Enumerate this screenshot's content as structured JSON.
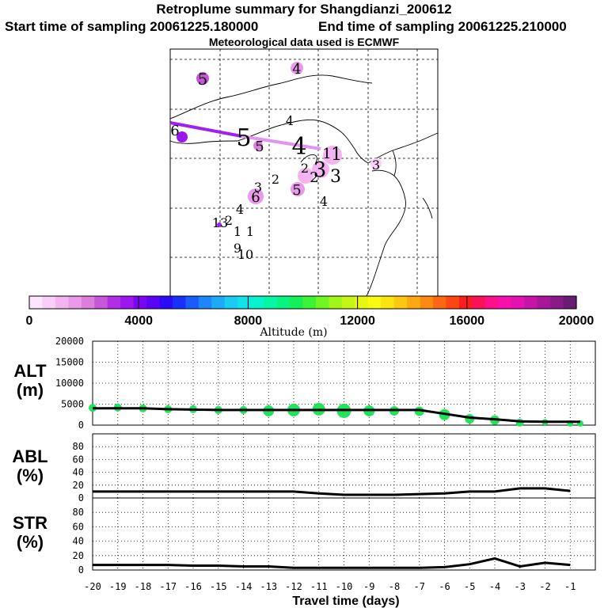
{
  "title": "Retroplume summary for Shangdianzi_200612",
  "subtitle_start": "Start time of sampling 20061225.180000",
  "subtitle_end": "End time of sampling 20061225.210000",
  "met_text": "Meteorological data used is ECMWF",
  "colors": {
    "curve": "#000000",
    "alt_markers": "#22e35a",
    "track_dark": "#a020f0",
    "track_light": "#e294f0",
    "grid": "#000000"
  },
  "colorbar": {
    "label": "Altitude (m)",
    "tick_labels": [
      "0",
      "4000",
      "8000",
      "12000",
      "16000",
      "20000"
    ],
    "tick_values": [
      0,
      4000,
      8000,
      12000,
      16000,
      20000
    ],
    "min": 0,
    "max": 20000,
    "colors": [
      "#fce6fc",
      "#f9cff9",
      "#f4b4f2",
      "#e99ae8",
      "#dc7edc",
      "#c856d8",
      "#b02ee6",
      "#9c16ef",
      "#7c06f4",
      "#5a04f6",
      "#2c0af8",
      "#1830fa",
      "#1a5cfb",
      "#1e86fb",
      "#1eaaf9",
      "#1acbf4",
      "#10e4e8",
      "#08f2cc",
      "#06f6a8",
      "#08f480",
      "#14f058",
      "#3cf434",
      "#70f622",
      "#a0f618",
      "#c8f614",
      "#e8f612",
      "#fafa10",
      "#fce410",
      "#fcc810",
      "#fcaa10",
      "#fc8a10",
      "#fc6812",
      "#fc4614",
      "#fc1c1a",
      "#fc1058",
      "#fc108c",
      "#f810ac",
      "#e412b0",
      "#c814a6",
      "#a8169a",
      "#881a8a",
      "#6a1c74"
    ]
  },
  "map_labels": [
    {
      "text": "5",
      "size": "large",
      "color": "dark"
    },
    {
      "text": "4",
      "size": "large",
      "color": "light"
    },
    {
      "text": "4",
      "size": "small",
      "color": "light"
    },
    {
      "text": "6",
      "size": "small",
      "color": "dark"
    },
    {
      "text": "5",
      "size": "xlarge",
      "color": "dark"
    },
    {
      "text": "5",
      "size": "small",
      "color": "light"
    },
    {
      "text": "4",
      "size": "xlarge",
      "color": "light"
    },
    {
      "text": "1",
      "size": "small",
      "color": "light"
    },
    {
      "text": "1",
      "size": "small",
      "color": "light"
    },
    {
      "text": "3",
      "size": "small",
      "color": "light"
    },
    {
      "text": "2",
      "size": "small",
      "color": "light"
    },
    {
      "text": "3",
      "size": "small",
      "color": "light"
    },
    {
      "text": "2",
      "size": "small",
      "color": "light"
    },
    {
      "text": "3",
      "size": "small",
      "color": "light"
    },
    {
      "text": "2",
      "size": "small",
      "color": "none"
    },
    {
      "text": "5",
      "size": "small",
      "color": "light"
    },
    {
      "text": "6",
      "size": "small",
      "color": "light"
    },
    {
      "text": "3",
      "size": "small",
      "color": "none"
    },
    {
      "text": "4",
      "size": "small",
      "color": "none"
    },
    {
      "text": "4",
      "size": "small",
      "color": "none"
    },
    {
      "text": "13",
      "size": "small",
      "color": "none"
    },
    {
      "text": "2",
      "size": "small",
      "color": "none"
    },
    {
      "text": "1",
      "size": "small",
      "color": "none"
    },
    {
      "text": "1",
      "size": "small",
      "color": "none"
    },
    {
      "text": "9",
      "size": "small",
      "color": "none"
    },
    {
      "text": "10",
      "size": "small",
      "color": "none"
    }
  ],
  "chart_data": [
    {
      "type": "line",
      "name": "ALT",
      "ylabel": "ALT\n(m)",
      "ylabel_lines": [
        "ALT",
        "(m)"
      ],
      "ylim": [
        0,
        20000
      ],
      "yticks": [
        0,
        5000,
        10000,
        15000,
        20000
      ],
      "ytick_labels": [
        "0",
        "5000",
        "10000",
        "15000",
        "20000"
      ],
      "x": [
        -20,
        -19,
        -18,
        -17,
        -16,
        -15,
        -14,
        -13,
        -12,
        -11,
        -10,
        -9,
        -8,
        -7,
        -6,
        -5,
        -4,
        -3,
        -2,
        -1,
        -0.6
      ],
      "values": [
        4000,
        4000,
        4000,
        3800,
        3700,
        3600,
        3600,
        3600,
        3600,
        3600,
        3600,
        3600,
        3600,
        3600,
        2700,
        1800,
        1400,
        900,
        800,
        800,
        800
      ],
      "markers": [
        {
          "x": -20,
          "y": 4100,
          "r": 5
        },
        {
          "x": -19,
          "y": 4200,
          "r": 5
        },
        {
          "x": -18,
          "y": 4000,
          "r": 5
        },
        {
          "x": -17,
          "y": 3800,
          "r": 5
        },
        {
          "x": -16,
          "y": 3800,
          "r": 5
        },
        {
          "x": -15,
          "y": 3600,
          "r": 5
        },
        {
          "x": -14,
          "y": 3600,
          "r": 5
        },
        {
          "x": -13,
          "y": 3400,
          "r": 7
        },
        {
          "x": -12,
          "y": 3600,
          "r": 8
        },
        {
          "x": -11,
          "y": 3800,
          "r": 8
        },
        {
          "x": -10,
          "y": 3400,
          "r": 9
        },
        {
          "x": -9,
          "y": 3400,
          "r": 7
        },
        {
          "x": -8,
          "y": 3400,
          "r": 6
        },
        {
          "x": -7,
          "y": 3300,
          "r": 6
        },
        {
          "x": -6,
          "y": 2500,
          "r": 7
        },
        {
          "x": -5,
          "y": 1500,
          "r": 6
        },
        {
          "x": -4,
          "y": 1200,
          "r": 6
        },
        {
          "x": -3,
          "y": 600,
          "r": 5
        },
        {
          "x": -2,
          "y": 700,
          "r": 4
        },
        {
          "x": -1,
          "y": 400,
          "r": 4
        },
        {
          "x": -0.6,
          "y": 400,
          "r": 4
        }
      ]
    },
    {
      "type": "line",
      "name": "ABL",
      "ylabel": "ABL\n(%)",
      "ylabel_lines": [
        "ABL",
        "(%)"
      ],
      "ylim": [
        0,
        100
      ],
      "yticks": [
        0,
        20,
        40,
        60,
        80
      ],
      "ytick_labels": [
        "0",
        "20",
        "40",
        "60",
        "80"
      ],
      "x": [
        -20,
        -19,
        -18,
        -17,
        -16,
        -15,
        -14,
        -13,
        -12,
        -11,
        -10,
        -9,
        -8,
        -7,
        -6,
        -5,
        -4,
        -3,
        -2,
        -1
      ],
      "values": [
        10,
        10,
        10,
        10,
        10,
        10,
        10,
        10,
        10,
        7,
        5,
        5,
        5,
        6,
        7,
        10,
        10,
        15,
        15,
        11
      ]
    },
    {
      "type": "line",
      "name": "STR",
      "ylabel": "STR\n(%)",
      "ylabel_lines": [
        "STR",
        "(%)"
      ],
      "ylim": [
        0,
        100
      ],
      "yticks": [
        0,
        20,
        40,
        60,
        80
      ],
      "ytick_labels": [
        "0",
        "20",
        "40",
        "60",
        "80"
      ],
      "x": [
        -20,
        -19,
        -18,
        -17,
        -16,
        -15,
        -14,
        -13,
        -12,
        -11,
        -10,
        -9,
        -8,
        -7,
        -6,
        -5,
        -4,
        -3,
        -2,
        -1
      ],
      "values": [
        7,
        7,
        7,
        7,
        6,
        6,
        5,
        5,
        3,
        3,
        3,
        3,
        3,
        3,
        4,
        8,
        16,
        5,
        10,
        7
      ],
      "xlabel": "Travel time (days)",
      "xlim": [
        -20,
        0
      ],
      "xticks": [
        -20,
        -19,
        -18,
        -17,
        -16,
        -15,
        -14,
        -13,
        -12,
        -11,
        -10,
        -9,
        -8,
        -7,
        -6,
        -5,
        -4,
        -3,
        -2,
        -1
      ],
      "xtick_labels": [
        "-20",
        "-19",
        "-18",
        "-17",
        "-16",
        "-15",
        "-14",
        "-13",
        "-12",
        "-11",
        "-10",
        "-9",
        "-8",
        "-7",
        "-6",
        "-5",
        "-4",
        "-3",
        "-2",
        "-1"
      ]
    }
  ]
}
